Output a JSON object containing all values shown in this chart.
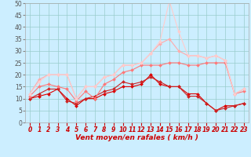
{
  "x": [
    0,
    1,
    2,
    3,
    4,
    5,
    6,
    7,
    8,
    9,
    10,
    11,
    12,
    13,
    14,
    15,
    16,
    17,
    18,
    19,
    20,
    21,
    22,
    23
  ],
  "series": [
    {
      "color": "#dd0000",
      "linewidth": 0.8,
      "markersize": 2,
      "values": [
        10,
        11,
        12,
        14,
        10,
        7,
        10,
        10,
        12,
        13,
        15,
        15,
        16,
        20,
        16,
        15,
        15,
        12,
        12,
        8,
        5,
        7,
        7,
        8
      ]
    },
    {
      "color": "#cc2222",
      "linewidth": 0.8,
      "markersize": 2,
      "values": [
        10,
        12,
        14,
        14,
        9,
        8,
        10,
        11,
        13,
        14,
        17,
        16,
        17,
        19,
        17,
        15,
        15,
        11,
        11,
        8,
        5,
        6,
        7,
        8
      ]
    },
    {
      "color": "#ff7777",
      "linewidth": 0.8,
      "markersize": 2,
      "values": [
        11,
        15,
        16,
        15,
        14,
        9,
        13,
        10,
        16,
        18,
        21,
        22,
        24,
        24,
        24,
        25,
        25,
        24,
        24,
        25,
        25,
        25,
        12,
        13
      ]
    },
    {
      "color": "#ffaaaa",
      "linewidth": 0.8,
      "markersize": 2,
      "values": [
        12,
        18,
        20,
        20,
        20,
        10,
        15,
        15,
        19,
        20,
        24,
        24,
        25,
        29,
        33,
        35,
        30,
        28,
        28,
        27,
        28,
        26,
        12,
        14
      ]
    },
    {
      "color": "#ffcccc",
      "linewidth": 0.8,
      "markersize": 2,
      "values": [
        12,
        17,
        20,
        20,
        20,
        10,
        15,
        15,
        19,
        20,
        24,
        24,
        25,
        29,
        34,
        51,
        38,
        28,
        28,
        27,
        28,
        26,
        12,
        14
      ]
    }
  ],
  "xlabel": "Vent moyen/en rafales ( km/h )",
  "xlim": [
    -0.5,
    23.5
  ],
  "ylim": [
    0,
    50
  ],
  "yticks": [
    0,
    5,
    10,
    15,
    20,
    25,
    30,
    35,
    40,
    45,
    50
  ],
  "xticks": [
    0,
    1,
    2,
    3,
    4,
    5,
    6,
    7,
    8,
    9,
    10,
    11,
    12,
    13,
    14,
    15,
    16,
    17,
    18,
    19,
    20,
    21,
    22,
    23
  ],
  "bg_color": "#cceeff",
  "grid_color": "#99cccc",
  "axis_fontsize": 6.5,
  "tick_fontsize": 5.5
}
